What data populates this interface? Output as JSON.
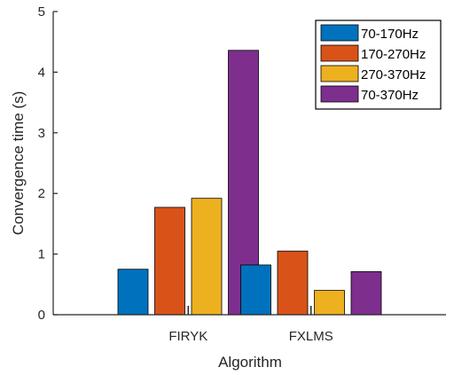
{
  "chart_data": {
    "type": "bar",
    "title": "",
    "xlabel": "Algorithm",
    "ylabel": "Convergence time (s)",
    "ylim": [
      0,
      5
    ],
    "yticks": [
      "0",
      "1",
      "2",
      "3",
      "4",
      "5"
    ],
    "categories": [
      "FIRYK",
      "FXLMS"
    ],
    "series": [
      {
        "name": "70-170Hz",
        "color": "#0072BD",
        "values": [
          0.75,
          0.82
        ]
      },
      {
        "name": "170-270Hz",
        "color": "#D95319",
        "values": [
          1.77,
          1.05
        ]
      },
      {
        "name": "270-370Hz",
        "color": "#EDB120",
        "values": [
          1.92,
          0.4
        ]
      },
      {
        "name": "70-370Hz",
        "color": "#7E2F8E",
        "values": [
          4.36,
          0.71
        ]
      }
    ],
    "grid": false,
    "legend_position": "top-right"
  }
}
